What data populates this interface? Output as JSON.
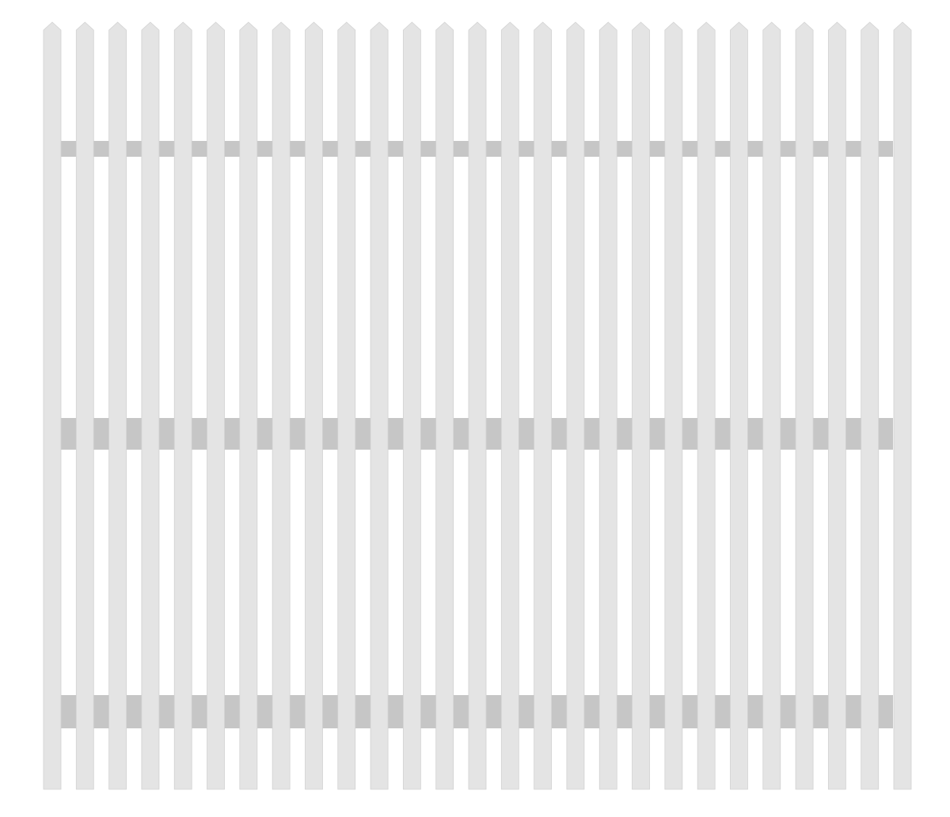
{
  "fence": {
    "picket_count": 27,
    "rail_count": 3,
    "colors": {
      "background": "#ffffff",
      "picket": "#e4e4e4",
      "picket_edge": "#d2d2d2",
      "rail": "#c6c6c6"
    }
  }
}
